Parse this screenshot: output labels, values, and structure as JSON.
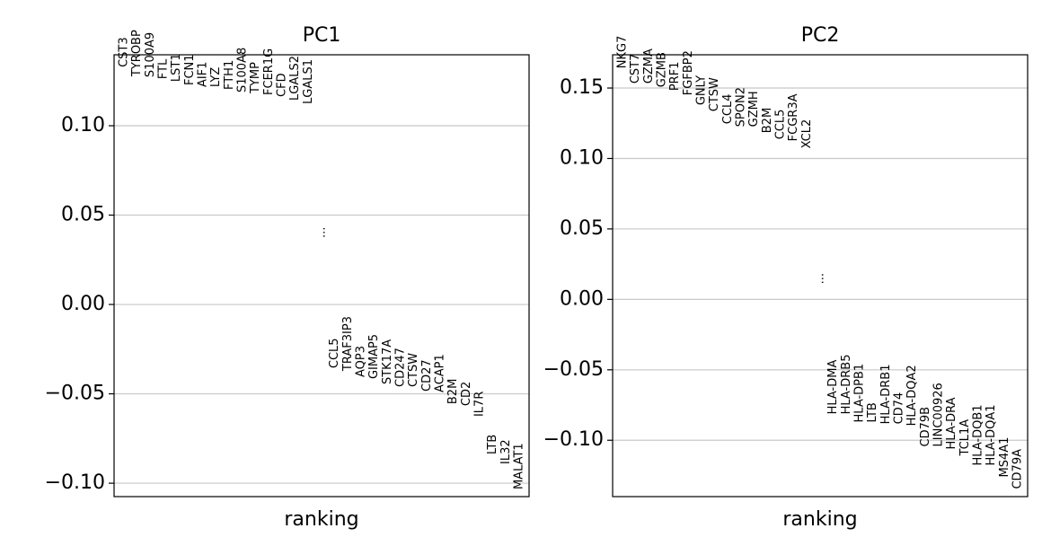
{
  "chart_data": [
    {
      "type": "ranking",
      "title": "PC1",
      "xlabel": "ranking",
      "labels": [
        "CST3",
        "TYROBP",
        "S100A9",
        "FTL",
        "LST1",
        "FCN1",
        "AIF1",
        "LYZ",
        "FTH1",
        "S100A8",
        "TYMP",
        "FCER1G",
        "CFD",
        "LGALS2",
        "LGALS1",
        "...",
        "CCL5",
        "TRAF3IP3",
        "AQP3",
        "GIMAP5",
        "STK17A",
        "CD247",
        "CTSW",
        "CD27",
        "ACAP1",
        "B2M",
        "CD2",
        "IL7R",
        "LTB",
        "IL32",
        "MALAT1"
      ],
      "values": [
        0.1327,
        0.1276,
        0.1271,
        0.1261,
        0.1246,
        0.1226,
        0.1216,
        0.1216,
        0.1201,
        0.1186,
        0.1181,
        0.1171,
        0.1161,
        0.1141,
        0.1121,
        0.0372,
        -0.0357,
        -0.0372,
        -0.0407,
        -0.0417,
        -0.0447,
        -0.0462,
        -0.0462,
        -0.0487,
        -0.0492,
        -0.0558,
        -0.0568,
        -0.0628,
        -0.0839,
        -0.0894,
        -0.1035
      ],
      "ylim": [
        -0.1075,
        0.1397
      ],
      "yticks": [
        {
          "value": -0.1,
          "label": "−0.10"
        },
        {
          "value": -0.05,
          "label": "−0.05"
        },
        {
          "value": 0,
          "label": "0.00"
        },
        {
          "value": 0.05,
          "label": "0.05"
        },
        {
          "value": 0.1,
          "label": "0.10"
        }
      ],
      "grid": true
    },
    {
      "type": "ranking",
      "title": "PC2",
      "xlabel": "ranking",
      "labels": [
        "NKG7",
        "CST7",
        "GZMA",
        "GZMB",
        "PRF1",
        "FGFBP2",
        "GNLY",
        "CTSW",
        "CCL4",
        "SPON2",
        "GZMH",
        "B2M",
        "CCL5",
        "FCGR3A",
        "XCL2",
        "...",
        "HLA-DMA",
        "HLA-DRB5",
        "HLA-DPB1",
        "LTB",
        "HLA-DRB1",
        "CD74",
        "HLA-DQA2",
        "CD79B",
        "LINC00926",
        "HLA-DRA",
        "TCL1A",
        "HLA-DQB1",
        "HLA-DQA1",
        "MS4A1",
        "CD79A"
      ],
      "values": [
        0.1639,
        0.1531,
        0.1531,
        0.1505,
        0.148,
        0.1448,
        0.1378,
        0.1333,
        0.1244,
        0.1224,
        0.1224,
        0.118,
        0.1135,
        0.1122,
        0.1071,
        0.0108,
        -0.0816,
        -0.0816,
        -0.0874,
        -0.0874,
        -0.0886,
        -0.0886,
        -0.0899,
        -0.1046,
        -0.1046,
        -0.1065,
        -0.111,
        -0.118,
        -0.118,
        -0.1263,
        -0.1346
      ],
      "ylim": [
        -0.14,
        0.1736
      ],
      "yticks": [
        {
          "value": -0.1,
          "label": "−0.10"
        },
        {
          "value": -0.05,
          "label": "−0.05"
        },
        {
          "value": 0,
          "label": "0.00"
        },
        {
          "value": 0.05,
          "label": "0.05"
        },
        {
          "value": 0.1,
          "label": "0.10"
        },
        {
          "value": 0.15,
          "label": "0.15"
        }
      ],
      "grid": true
    }
  ]
}
